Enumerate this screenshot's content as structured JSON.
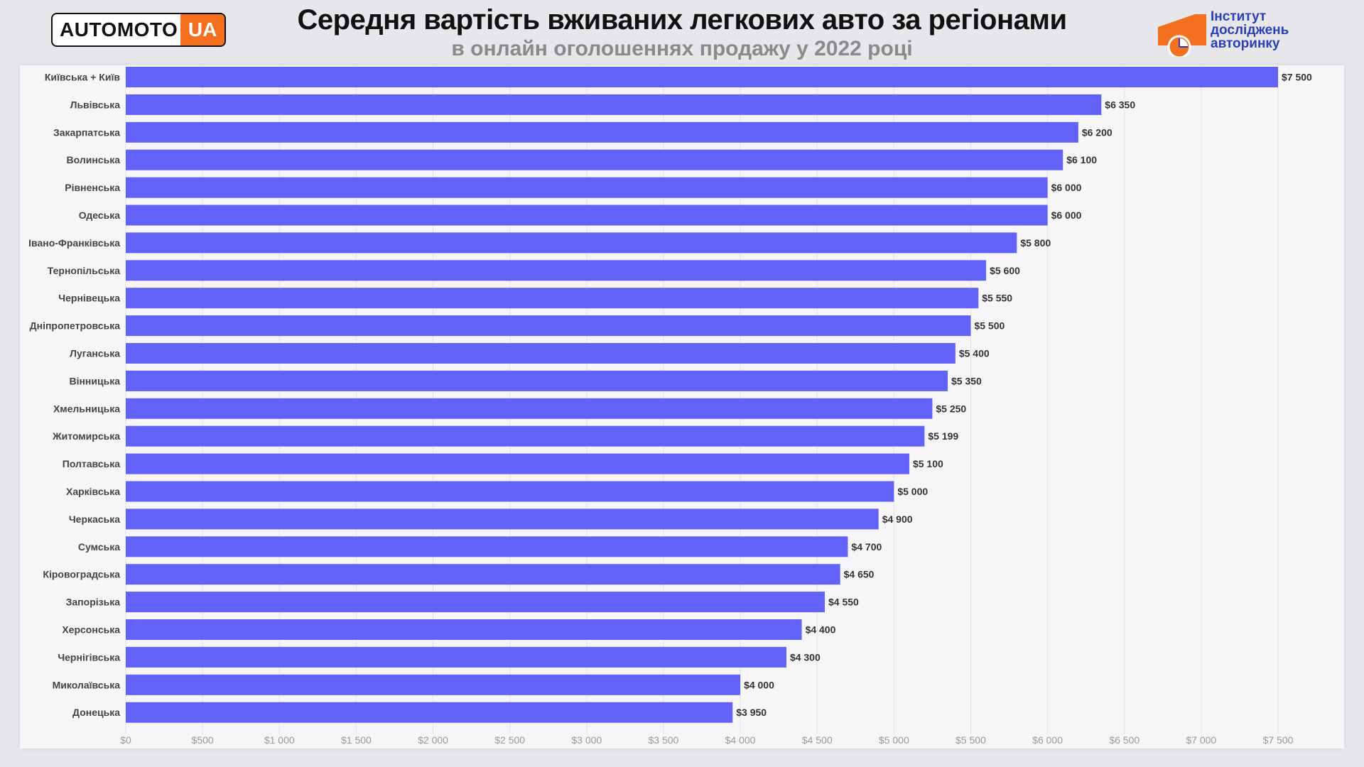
{
  "header": {
    "title": "Середня вартість вживаних легкових авто за регіонами",
    "subtitle": "в онлайн оголошеннях продажу у 2022 році",
    "logo_left": {
      "text": "AUTOMOTO",
      "suffix": "UA"
    },
    "logo_right": {
      "lines": [
        "Інститут",
        "досліджень",
        "авторинку"
      ]
    }
  },
  "colors": {
    "bar": "#6262f8",
    "accent": "#f37021",
    "brand_blue": "#2a3fb5"
  },
  "chart_data": {
    "type": "bar",
    "orientation": "horizontal",
    "title": "Середня вартість вживаних легкових авто за регіонами",
    "subtitle": "в онлайн оголошеннях продажу у 2022 році",
    "xlabel": "",
    "ylabel": "",
    "xlim": [
      0,
      7500
    ],
    "grid": true,
    "categories": [
      "Київська + Київ",
      "Львівська",
      "Закарпатська",
      "Волинська",
      "Рівненська",
      "Одеська",
      "Івано-Франківська",
      "Тернопільська",
      "Чернівецька",
      "Дніпропетровська",
      "Луганська",
      "Вінницька",
      "Хмельницька",
      "Житомирська",
      "Полтавська",
      "Харківська",
      "Черкаська",
      "Сумська",
      "Кіровоградська",
      "Запорізька",
      "Херсонська",
      "Чернігівська",
      "Миколаївська",
      "Донецька"
    ],
    "values": [
      7500,
      6350,
      6200,
      6100,
      6000,
      6000,
      5800,
      5600,
      5550,
      5500,
      5400,
      5350,
      5250,
      5199,
      5100,
      5000,
      4900,
      4700,
      4650,
      4550,
      4400,
      4300,
      4000,
      3950
    ],
    "value_labels": [
      "$7 500",
      "$6 350",
      "$6 200",
      "$6 100",
      "$6 000",
      "$6 000",
      "$5 800",
      "$5 600",
      "$5 550",
      "$5 500",
      "$5 400",
      "$5 350",
      "$5 250",
      "$5 199",
      "$5 100",
      "$5 000",
      "$4 900",
      "$4 700",
      "$4 650",
      "$4 550",
      "$4 400",
      "$4 300",
      "$4 000",
      "$3 950"
    ],
    "x_ticks": [
      0,
      500,
      1000,
      1500,
      2000,
      2500,
      3000,
      3500,
      4000,
      4500,
      5000,
      5500,
      6000,
      6500,
      7000,
      7500
    ],
    "x_tick_labels": [
      "$0",
      "$500",
      "$1 000",
      "$1 500",
      "$2 000",
      "$2 500",
      "$3 000",
      "$3 500",
      "$4 000",
      "$4 500",
      "$5 000",
      "$5 500",
      "$6 000",
      "$6 500",
      "$7 000",
      "$7 500"
    ]
  }
}
